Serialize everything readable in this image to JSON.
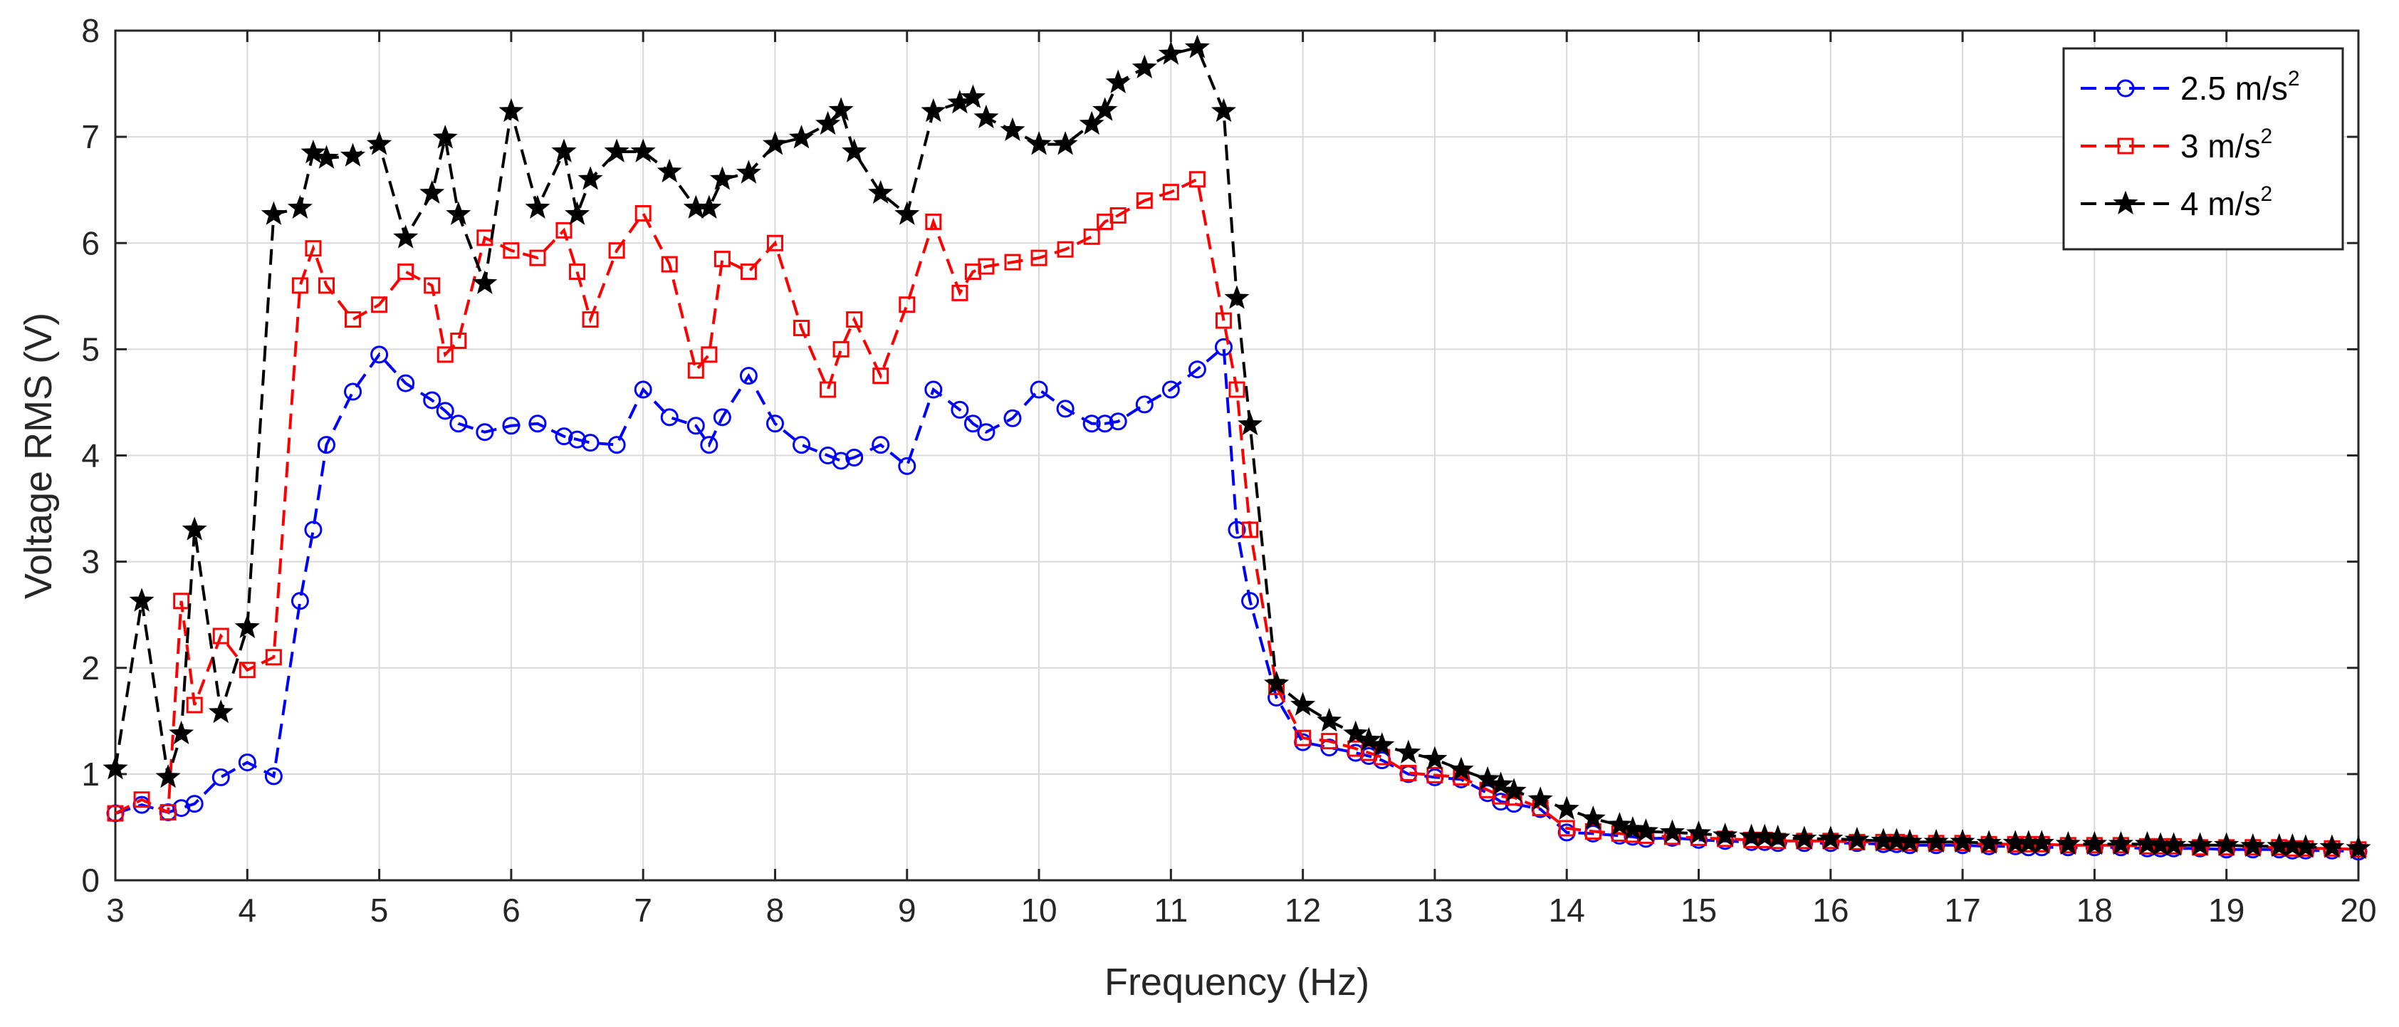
{
  "chart_data": {
    "type": "line",
    "title": "",
    "xlabel": "Frequency (Hz)",
    "ylabel": "Voltage RMS (V)",
    "xlim": [
      3,
      20
    ],
    "ylim": [
      0,
      8
    ],
    "x_ticks": [
      "3",
      "4",
      "5",
      "6",
      "7",
      "8",
      "9",
      "10",
      "11",
      "12",
      "13",
      "14",
      "15",
      "16",
      "17",
      "18",
      "19",
      "20"
    ],
    "y_ticks": [
      "0",
      "1",
      "2",
      "3",
      "4",
      "5",
      "6",
      "7",
      "8"
    ],
    "grid": true,
    "legend_position": "top-right",
    "series": [
      {
        "name": "2.5 m/s",
        "name_sup": "2",
        "color": "#0000ff",
        "marker": "circle",
        "points": [
          [
            3,
            0.63
          ],
          [
            3.2,
            0.71
          ],
          [
            3.4,
            0.64
          ],
          [
            3.5,
            0.68
          ],
          [
            3.6,
            0.72
          ],
          [
            3.8,
            0.97
          ],
          [
            4,
            1.11
          ],
          [
            4.2,
            0.98
          ],
          [
            4.4,
            2.63
          ],
          [
            4.5,
            3.3
          ],
          [
            4.6,
            4.1
          ],
          [
            4.8,
            4.6
          ],
          [
            5,
            4.95
          ],
          [
            5.2,
            4.68
          ],
          [
            5.4,
            4.52
          ],
          [
            5.5,
            4.42
          ],
          [
            5.6,
            4.3
          ],
          [
            5.8,
            4.22
          ],
          [
            6,
            4.28
          ],
          [
            6.2,
            4.3
          ],
          [
            6.4,
            4.18
          ],
          [
            6.5,
            4.15
          ],
          [
            6.6,
            4.12
          ],
          [
            6.8,
            4.1
          ],
          [
            7,
            4.62
          ],
          [
            7.2,
            4.36
          ],
          [
            7.4,
            4.28
          ],
          [
            7.5,
            4.1
          ],
          [
            7.6,
            4.36
          ],
          [
            7.8,
            4.75
          ],
          [
            8,
            4.3
          ],
          [
            8.2,
            4.1
          ],
          [
            8.4,
            4.0
          ],
          [
            8.5,
            3.95
          ],
          [
            8.6,
            3.98
          ],
          [
            8.8,
            4.1
          ],
          [
            9,
            3.9
          ],
          [
            9.2,
            4.62
          ],
          [
            9.4,
            4.43
          ],
          [
            9.5,
            4.3
          ],
          [
            9.6,
            4.22
          ],
          [
            9.8,
            4.35
          ],
          [
            10,
            4.62
          ],
          [
            10.2,
            4.44
          ],
          [
            10.4,
            4.3
          ],
          [
            10.5,
            4.3
          ],
          [
            10.6,
            4.32
          ],
          [
            10.8,
            4.48
          ],
          [
            11,
            4.62
          ],
          [
            11.2,
            4.81
          ],
          [
            11.4,
            5.02
          ],
          [
            11.5,
            3.3
          ],
          [
            11.6,
            2.63
          ],
          [
            11.8,
            1.72
          ],
          [
            12,
            1.3
          ],
          [
            12.2,
            1.25
          ],
          [
            12.4,
            1.2
          ],
          [
            12.5,
            1.17
          ],
          [
            12.6,
            1.13
          ],
          [
            12.8,
            1.0
          ],
          [
            13,
            0.97
          ],
          [
            13.2,
            0.95
          ],
          [
            13.4,
            0.82
          ],
          [
            13.5,
            0.74
          ],
          [
            13.6,
            0.72
          ],
          [
            13.8,
            0.67
          ],
          [
            14,
            0.45
          ],
          [
            14.2,
            0.44
          ],
          [
            14.4,
            0.42
          ],
          [
            14.5,
            0.41
          ],
          [
            14.6,
            0.39
          ],
          [
            14.8,
            0.4
          ],
          [
            15,
            0.38
          ],
          [
            15.2,
            0.37
          ],
          [
            15.4,
            0.36
          ],
          [
            15.5,
            0.36
          ],
          [
            15.6,
            0.35
          ],
          [
            15.8,
            0.35
          ],
          [
            16,
            0.35
          ],
          [
            16.2,
            0.35
          ],
          [
            16.4,
            0.34
          ],
          [
            16.5,
            0.34
          ],
          [
            16.6,
            0.33
          ],
          [
            16.8,
            0.33
          ],
          [
            17,
            0.33
          ],
          [
            17.2,
            0.32
          ],
          [
            17.4,
            0.32
          ],
          [
            17.5,
            0.31
          ],
          [
            17.6,
            0.31
          ],
          [
            17.8,
            0.31
          ],
          [
            18,
            0.31
          ],
          [
            18.2,
            0.31
          ],
          [
            18.4,
            0.3
          ],
          [
            18.5,
            0.3
          ],
          [
            18.6,
            0.3
          ],
          [
            18.8,
            0.3
          ],
          [
            19,
            0.29
          ],
          [
            19.2,
            0.29
          ],
          [
            19.4,
            0.29
          ],
          [
            19.5,
            0.28
          ],
          [
            19.6,
            0.28
          ],
          [
            19.8,
            0.28
          ],
          [
            20,
            0.27
          ]
        ]
      },
      {
        "name": "3 m/s",
        "name_sup": "2",
        "color": "#ff0000",
        "marker": "square",
        "points": [
          [
            3,
            0.63
          ],
          [
            3.2,
            0.76
          ],
          [
            3.4,
            0.64
          ],
          [
            3.5,
            2.63
          ],
          [
            3.6,
            1.65
          ],
          [
            3.8,
            2.3
          ],
          [
            4,
            1.98
          ],
          [
            4.2,
            2.1
          ],
          [
            4.4,
            5.6
          ],
          [
            4.5,
            5.95
          ],
          [
            4.6,
            5.6
          ],
          [
            4.8,
            5.28
          ],
          [
            5,
            5.42
          ],
          [
            5.2,
            5.73
          ],
          [
            5.4,
            5.6
          ],
          [
            5.5,
            4.95
          ],
          [
            5.6,
            5.08
          ],
          [
            5.8,
            6.05
          ],
          [
            6,
            5.93
          ],
          [
            6.2,
            5.86
          ],
          [
            6.4,
            6.12
          ],
          [
            6.5,
            5.73
          ],
          [
            6.6,
            5.28
          ],
          [
            6.8,
            5.93
          ],
          [
            7,
            6.28
          ],
          [
            7.2,
            5.8
          ],
          [
            7.4,
            4.8
          ],
          [
            7.5,
            4.95
          ],
          [
            7.6,
            5.85
          ],
          [
            7.8,
            5.73
          ],
          [
            8,
            6.0
          ],
          [
            8.2,
            5.2
          ],
          [
            8.4,
            4.62
          ],
          [
            8.5,
            5.0
          ],
          [
            8.6,
            5.28
          ],
          [
            8.8,
            4.75
          ],
          [
            9,
            5.42
          ],
          [
            9.2,
            6.2
          ],
          [
            9.4,
            5.53
          ],
          [
            9.5,
            5.73
          ],
          [
            9.6,
            5.78
          ],
          [
            9.8,
            5.82
          ],
          [
            10,
            5.86
          ],
          [
            10.2,
            5.94
          ],
          [
            10.4,
            6.06
          ],
          [
            10.5,
            6.2
          ],
          [
            10.6,
            6.26
          ],
          [
            10.8,
            6.4
          ],
          [
            11,
            6.48
          ],
          [
            11.2,
            6.6
          ],
          [
            11.4,
            5.27
          ],
          [
            11.5,
            4.62
          ],
          [
            11.6,
            3.3
          ],
          [
            11.8,
            1.82
          ],
          [
            12,
            1.34
          ],
          [
            12.2,
            1.31
          ],
          [
            12.4,
            1.24
          ],
          [
            12.5,
            1.2
          ],
          [
            12.6,
            1.16
          ],
          [
            12.8,
            1.01
          ],
          [
            13,
            0.99
          ],
          [
            13.2,
            0.97
          ],
          [
            13.4,
            0.85
          ],
          [
            13.5,
            0.79
          ],
          [
            13.6,
            0.78
          ],
          [
            13.8,
            0.68
          ],
          [
            14,
            0.49
          ],
          [
            14.2,
            0.46
          ],
          [
            14.4,
            0.44
          ],
          [
            14.5,
            0.43
          ],
          [
            14.6,
            0.42
          ],
          [
            14.8,
            0.41
          ],
          [
            15,
            0.4
          ],
          [
            15.2,
            0.39
          ],
          [
            15.4,
            0.38
          ],
          [
            15.5,
            0.38
          ],
          [
            15.6,
            0.37
          ],
          [
            15.8,
            0.37
          ],
          [
            16,
            0.37
          ],
          [
            16.2,
            0.36
          ],
          [
            16.4,
            0.36
          ],
          [
            16.5,
            0.36
          ],
          [
            16.6,
            0.35
          ],
          [
            16.8,
            0.35
          ],
          [
            17,
            0.35
          ],
          [
            17.2,
            0.34
          ],
          [
            17.4,
            0.34
          ],
          [
            17.5,
            0.34
          ],
          [
            17.6,
            0.34
          ],
          [
            17.8,
            0.33
          ],
          [
            18,
            0.33
          ],
          [
            18.2,
            0.33
          ],
          [
            18.4,
            0.32
          ],
          [
            18.5,
            0.32
          ],
          [
            18.6,
            0.32
          ],
          [
            18.8,
            0.31
          ],
          [
            19,
            0.31
          ],
          [
            19.2,
            0.31
          ],
          [
            19.4,
            0.31
          ],
          [
            19.5,
            0.3
          ],
          [
            19.6,
            0.3
          ],
          [
            19.8,
            0.3
          ],
          [
            20,
            0.29
          ]
        ]
      },
      {
        "name": "4 m/s",
        "name_sup": "2",
        "color": "#000000",
        "marker": "star",
        "points": [
          [
            3,
            1.05
          ],
          [
            3.2,
            2.63
          ],
          [
            3.4,
            0.97
          ],
          [
            3.5,
            1.38
          ],
          [
            3.6,
            3.3
          ],
          [
            3.8,
            1.58
          ],
          [
            4,
            2.38
          ],
          [
            4.2,
            6.27
          ],
          [
            4.4,
            6.33
          ],
          [
            4.5,
            6.85
          ],
          [
            4.6,
            6.8
          ],
          [
            4.8,
            6.82
          ],
          [
            5,
            6.93
          ],
          [
            5.2,
            6.05
          ],
          [
            5.4,
            6.47
          ],
          [
            5.5,
            6.99
          ],
          [
            5.6,
            6.27
          ],
          [
            5.8,
            5.62
          ],
          [
            6,
            7.24
          ],
          [
            6.2,
            6.33
          ],
          [
            6.4,
            6.86
          ],
          [
            6.5,
            6.27
          ],
          [
            6.6,
            6.6
          ],
          [
            6.8,
            6.86
          ],
          [
            7,
            6.86
          ],
          [
            7.2,
            6.67
          ],
          [
            7.4,
            6.33
          ],
          [
            7.5,
            6.33
          ],
          [
            7.6,
            6.6
          ],
          [
            7.8,
            6.66
          ],
          [
            8,
            6.93
          ],
          [
            8.2,
            6.99
          ],
          [
            8.4,
            7.12
          ],
          [
            8.5,
            7.25
          ],
          [
            8.6,
            6.86
          ],
          [
            8.8,
            6.47
          ],
          [
            9,
            6.27
          ],
          [
            9.2,
            7.24
          ],
          [
            9.4,
            7.32
          ],
          [
            9.5,
            7.37
          ],
          [
            9.6,
            7.18
          ],
          [
            9.8,
            7.06
          ],
          [
            10,
            6.93
          ],
          [
            10.2,
            6.93
          ],
          [
            10.4,
            7.12
          ],
          [
            10.5,
            7.25
          ],
          [
            10.6,
            7.51
          ],
          [
            10.8,
            7.65
          ],
          [
            11,
            7.78
          ],
          [
            11.2,
            7.84
          ],
          [
            11.4,
            7.24
          ],
          [
            11.5,
            5.48
          ],
          [
            11.6,
            4.29
          ],
          [
            11.8,
            1.85
          ],
          [
            12,
            1.65
          ],
          [
            12.2,
            1.5
          ],
          [
            12.4,
            1.38
          ],
          [
            12.5,
            1.32
          ],
          [
            12.6,
            1.27
          ],
          [
            12.8,
            1.2
          ],
          [
            13,
            1.14
          ],
          [
            13.2,
            1.04
          ],
          [
            13.4,
            0.95
          ],
          [
            13.5,
            0.9
          ],
          [
            13.6,
            0.84
          ],
          [
            13.8,
            0.76
          ],
          [
            14,
            0.67
          ],
          [
            14.2,
            0.58
          ],
          [
            14.4,
            0.52
          ],
          [
            14.5,
            0.48
          ],
          [
            14.6,
            0.46
          ],
          [
            14.8,
            0.45
          ],
          [
            15,
            0.44
          ],
          [
            15.2,
            0.42
          ],
          [
            15.4,
            0.41
          ],
          [
            15.5,
            0.41
          ],
          [
            15.6,
            0.4
          ],
          [
            15.8,
            0.39
          ],
          [
            16,
            0.39
          ],
          [
            16.2,
            0.38
          ],
          [
            16.4,
            0.37
          ],
          [
            16.5,
            0.37
          ],
          [
            16.6,
            0.36
          ],
          [
            16.8,
            0.36
          ],
          [
            17,
            0.36
          ],
          [
            17.2,
            0.35
          ],
          [
            17.4,
            0.35
          ],
          [
            17.5,
            0.35
          ],
          [
            17.6,
            0.35
          ],
          [
            17.8,
            0.34
          ],
          [
            18,
            0.34
          ],
          [
            18.2,
            0.34
          ],
          [
            18.4,
            0.34
          ],
          [
            18.5,
            0.33
          ],
          [
            18.6,
            0.33
          ],
          [
            18.8,
            0.33
          ],
          [
            19,
            0.33
          ],
          [
            19.2,
            0.32
          ],
          [
            19.4,
            0.32
          ],
          [
            19.5,
            0.32
          ],
          [
            19.6,
            0.31
          ],
          [
            19.8,
            0.31
          ],
          [
            20,
            0.3
          ]
        ]
      }
    ]
  }
}
